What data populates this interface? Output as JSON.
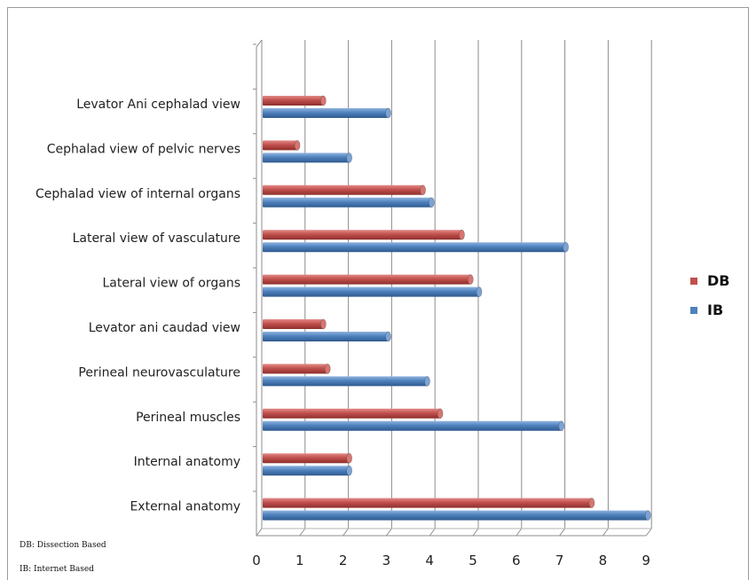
{
  "chart_data": {
    "type": "bar",
    "orientation": "horizontal",
    "categories": [
      "External anatomy",
      "Internal anatomy",
      "Perineal muscles",
      "Perineal neurovasculature",
      "Levator ani caudad view",
      "Lateral view of organs",
      "Lateral view of vasculature",
      "Cephalad view of internal organs",
      "Cephalad view of pelvic nerves",
      "Levator Ani cephalad view"
    ],
    "series": [
      {
        "name": "DB",
        "color": "#c0504d",
        "values": [
          7.6,
          2.0,
          4.1,
          1.5,
          1.4,
          4.8,
          4.6,
          3.7,
          0.8,
          1.4
        ]
      },
      {
        "name": "IB",
        "color": "#4f81bd",
        "values": [
          8.9,
          2.0,
          6.9,
          3.8,
          2.9,
          5.0,
          7.0,
          3.9,
          2.0,
          2.9
        ]
      }
    ],
    "xticks": [
      "0",
      "1",
      "2",
      "3",
      "4",
      "5",
      "6",
      "7",
      "8",
      "9"
    ],
    "xlim": [
      0,
      9
    ],
    "grid": true,
    "legend": "right"
  },
  "footnotes": [
    "DB: Dissection Based",
    "IB: Internet Based"
  ]
}
